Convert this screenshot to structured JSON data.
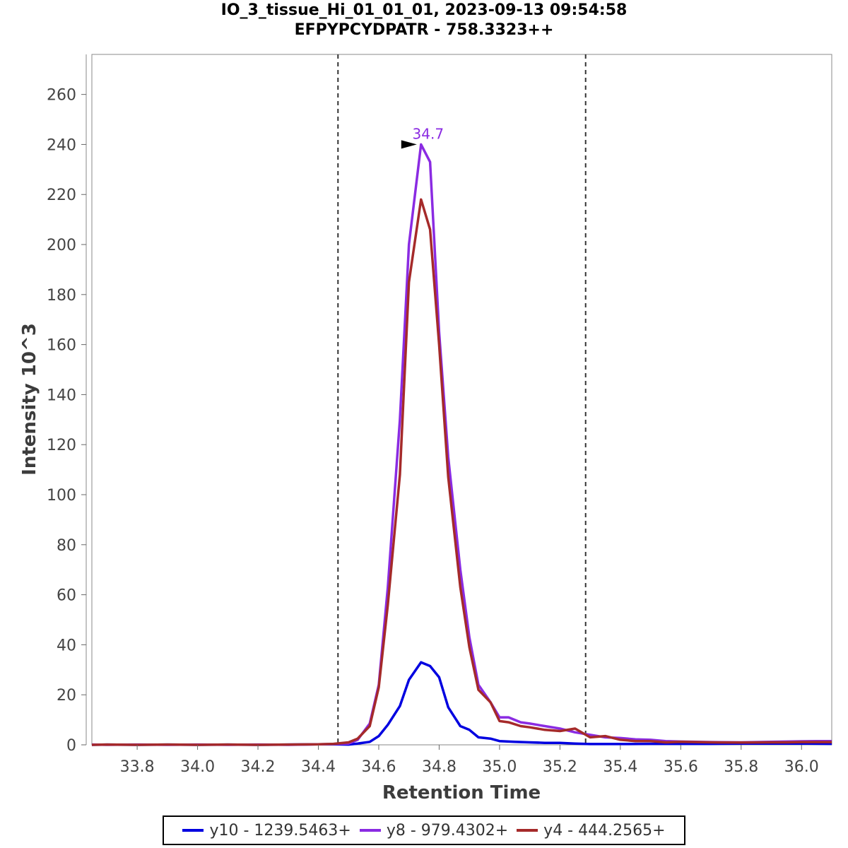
{
  "chart_data": {
    "type": "line",
    "title": "IO_3_tissue_Hi_01_01_01, 2023-09-13 09:54:58",
    "subtitle": "EFPYPCYDPATR - 758.3323++",
    "xlabel": "Retention Time",
    "ylabel": "Intensity 10^3",
    "xlim": [
      33.65,
      36.1
    ],
    "ylim": [
      0,
      276
    ],
    "xticks": [
      "33.8",
      "34.0",
      "34.2",
      "34.4",
      "34.6",
      "34.8",
      "35.0",
      "35.2",
      "35.4",
      "35.6",
      "35.8",
      "36.0"
    ],
    "yticks": [
      "0",
      "20",
      "40",
      "60",
      "80",
      "100",
      "120",
      "140",
      "160",
      "180",
      "200",
      "220",
      "240",
      "260"
    ],
    "grid": false,
    "legend_position": "bottom",
    "peak_annotation": {
      "label": "34.7",
      "x": 34.74,
      "y": 240
    },
    "boundaries": [
      34.465,
      35.285
    ],
    "series": [
      {
        "name": "y10 - 1239.5463+",
        "color": "#0000e0",
        "x": [
          33.65,
          33.7,
          33.8,
          33.9,
          34.0,
          34.1,
          34.2,
          34.3,
          34.4,
          34.45,
          34.5,
          34.53,
          34.57,
          34.6,
          34.63,
          34.67,
          34.7,
          34.74,
          34.77,
          34.8,
          34.83,
          34.87,
          34.9,
          34.93,
          34.97,
          35.0,
          35.05,
          35.1,
          35.15,
          35.2,
          35.25,
          35.3,
          35.4,
          35.5,
          35.6,
          35.7,
          35.8,
          35.9,
          36.0,
          36.1
        ],
        "y": [
          0,
          0.1,
          0,
          0.1,
          0,
          0.1,
          0,
          0.1,
          0.2,
          0.2,
          0.1,
          0.5,
          1.2,
          3.5,
          8,
          15.5,
          26,
          33,
          31.5,
          27,
          15,
          7.5,
          6,
          3,
          2.5,
          1.5,
          1.2,
          1,
          0.8,
          0.8,
          0.5,
          0.3,
          0.3,
          0.4,
          0.4,
          0.4,
          0.5,
          0.5,
          0.5,
          0.4
        ]
      },
      {
        "name": "y8 - 979.4302+",
        "color": "#8a2be2",
        "x": [
          33.65,
          33.7,
          33.8,
          33.9,
          34.0,
          34.1,
          34.2,
          34.3,
          34.4,
          34.45,
          34.5,
          34.53,
          34.57,
          34.6,
          34.63,
          34.67,
          34.7,
          34.74,
          34.77,
          34.8,
          34.83,
          34.87,
          34.9,
          34.93,
          34.97,
          35.0,
          35.03,
          35.07,
          35.1,
          35.15,
          35.2,
          35.25,
          35.3,
          35.35,
          35.4,
          35.45,
          35.5,
          35.55,
          35.6,
          35.7,
          35.8,
          35.9,
          35.95,
          36.0,
          36.05,
          36.1
        ],
        "y": [
          0.1,
          0,
          0.1,
          0,
          0.1,
          0,
          0.1,
          0,
          0.2,
          0.3,
          0.5,
          2,
          8.5,
          24,
          63,
          130,
          200,
          240,
          233,
          165,
          115,
          70,
          43,
          24,
          17,
          11,
          11,
          9,
          8.5,
          7.5,
          6.5,
          5,
          4,
          3,
          2.7,
          2.2,
          2,
          1.5,
          1.3,
          1.1,
          1,
          1.2,
          1.3,
          1.4,
          1.5,
          1.5
        ]
      },
      {
        "name": "y4 - 444.2565+",
        "color": "#a52a2a",
        "x": [
          33.65,
          33.7,
          33.8,
          33.9,
          34.0,
          34.1,
          34.2,
          34.3,
          34.4,
          34.45,
          34.5,
          34.53,
          34.57,
          34.6,
          34.63,
          34.67,
          34.7,
          34.74,
          34.77,
          34.8,
          34.83,
          34.87,
          34.9,
          34.93,
          34.97,
          35.0,
          35.03,
          35.07,
          35.1,
          35.15,
          35.2,
          35.25,
          35.3,
          35.35,
          35.4,
          35.45,
          35.5,
          35.55,
          35.6,
          35.7,
          35.8,
          35.9,
          35.95,
          36.0,
          36.05,
          36.1
        ],
        "y": [
          0,
          0.1,
          0,
          0.1,
          0,
          0.1,
          0,
          0.1,
          0.2,
          0.4,
          1,
          2.5,
          7.5,
          23,
          56,
          108,
          185,
          218,
          206,
          160,
          107,
          63,
          39,
          22,
          17,
          9.5,
          9,
          7.5,
          7,
          6,
          5.5,
          6.5,
          3,
          3.5,
          2,
          1.5,
          1.5,
          1,
          1.2,
          1,
          0.9,
          1,
          1,
          1.1,
          1.1,
          1.1
        ]
      }
    ]
  }
}
